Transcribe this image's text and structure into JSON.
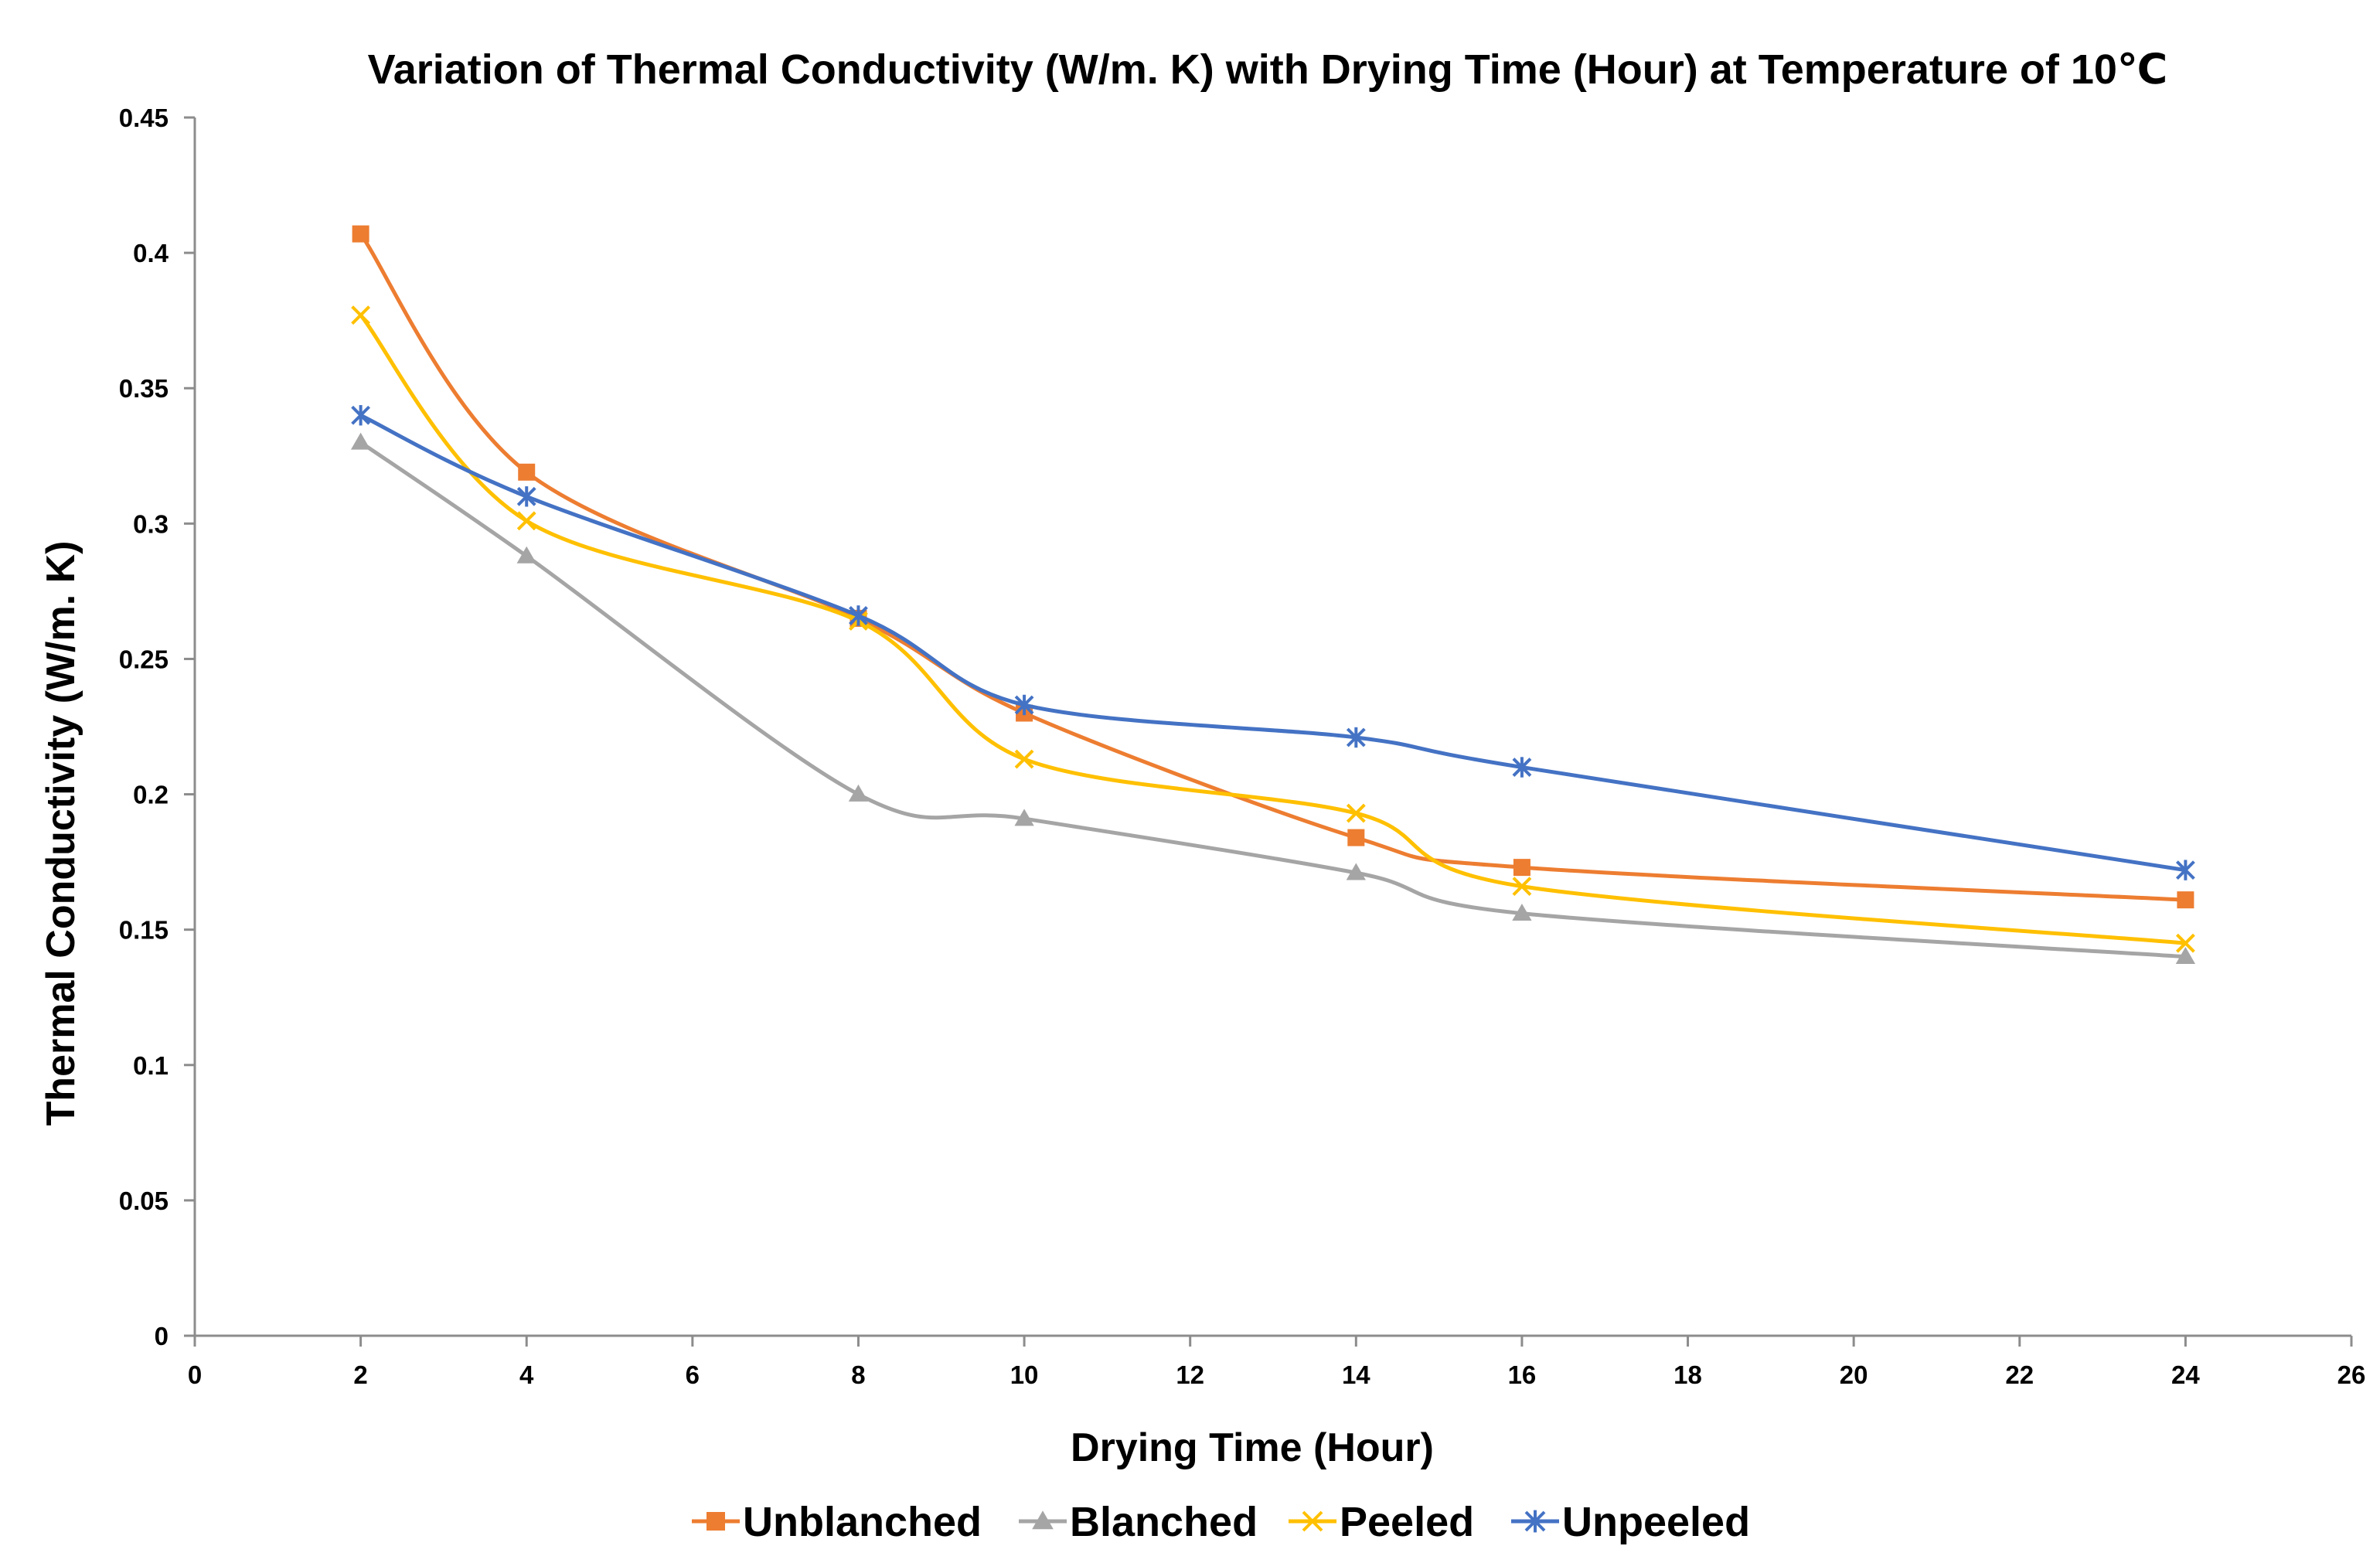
{
  "chart_data": {
    "type": "line",
    "title": "Variation of Thermal Conductivity (W/m. K) with Drying Time (Hour) at Temperature of 10℃",
    "xlabel": "Drying Time (Hour)",
    "ylabel": "Thermal Conductivity (W/m. K)",
    "xlim": [
      0,
      26
    ],
    "ylim": [
      0,
      0.45
    ],
    "x_ticks": [
      0,
      2,
      4,
      6,
      8,
      10,
      12,
      14,
      16,
      18,
      20,
      22,
      24,
      26
    ],
    "x_tick_labels": [
      "0",
      "2",
      "4",
      "6",
      "8",
      "10",
      "12",
      "14",
      "16",
      "18",
      "20",
      "22",
      "24",
      "26"
    ],
    "y_ticks": [
      0,
      0.05,
      0.1,
      0.15,
      0.2,
      0.25,
      0.3,
      0.35,
      0.4,
      0.45
    ],
    "y_tick_labels": [
      "0",
      "0.05",
      "0.1",
      "0.15",
      "0.2",
      "0.25",
      "0.3",
      "0.35",
      "0.4",
      "0.45"
    ],
    "grid": false,
    "legend_position": "bottom",
    "smooth": true,
    "x": [
      2,
      4,
      8,
      10,
      14,
      16,
      24
    ],
    "series": [
      {
        "name": "Unblanched",
        "color": "#ED7D31",
        "marker": "square",
        "values": [
          0.407,
          0.319,
          0.265,
          0.23,
          0.184,
          0.173,
          0.161
        ]
      },
      {
        "name": "Blanched",
        "color": "#A5A5A5",
        "marker": "triangle",
        "values": [
          0.33,
          0.288,
          0.2,
          0.191,
          0.171,
          0.156,
          0.14
        ]
      },
      {
        "name": "Peeled",
        "color": "#FFC000",
        "marker": "x",
        "values": [
          0.377,
          0.301,
          0.264,
          0.213,
          0.193,
          0.166,
          0.145
        ]
      },
      {
        "name": "Unpeeled",
        "color": "#4472C4",
        "marker": "star",
        "values": [
          0.34,
          0.31,
          0.266,
          0.233,
          0.221,
          0.21,
          0.172
        ]
      }
    ]
  }
}
